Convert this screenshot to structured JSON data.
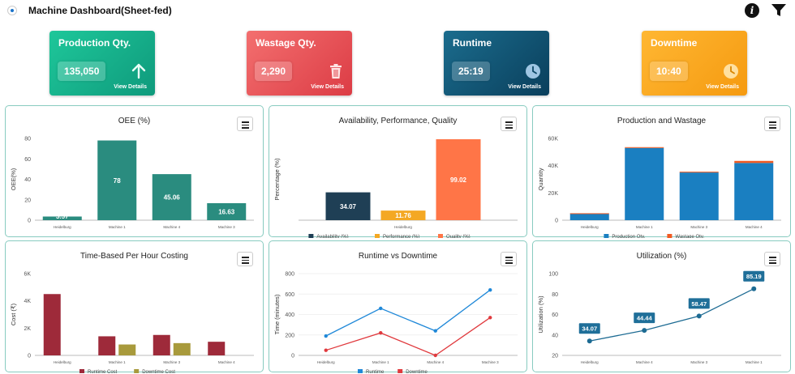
{
  "header": {
    "title": "Machine Dashboard(Sheet-fed)"
  },
  "kpis": [
    {
      "label": "Production Qty.",
      "value": "135,050",
      "link": "View Details",
      "icon": "arrow-up-icon"
    },
    {
      "label": "Wastage Qty.",
      "value": "2,290",
      "link": "View Details",
      "icon": "trash-icon"
    },
    {
      "label": "Runtime",
      "value": "25:19",
      "link": "View Details",
      "icon": "clock-icon"
    },
    {
      "label": "Downtime",
      "value": "10:40",
      "link": "View Details",
      "icon": "clock-icon"
    }
  ],
  "charts": {
    "oee": {
      "title": "OEE (%)"
    },
    "apq": {
      "title": "Availability, Performance, Quality"
    },
    "prodwaste": {
      "title": "Production and Wastage"
    },
    "costing": {
      "title": "Time-Based Per Hour Costing"
    },
    "runtime": {
      "title": "Runtime vs Downtime"
    },
    "util": {
      "title": "Utilization (%)"
    }
  },
  "chart_data": [
    {
      "id": "oee",
      "type": "bar",
      "title": "OEE (%)",
      "categories": [
        "Heidelburg",
        "Machine 1",
        "Machine 4",
        "Machine 3"
      ],
      "values": [
        3.57,
        78,
        45.06,
        16.63
      ],
      "labels": [
        "3.57",
        "78",
        "45.06",
        "16.63"
      ],
      "ylabel": "OEE(%)",
      "ylim": [
        0,
        80
      ],
      "yticks": [
        "0",
        "20",
        "40",
        "60",
        "80"
      ],
      "color": "#2a8c7f"
    },
    {
      "id": "apq",
      "type": "bar",
      "title": "Availability, Performance, Quality",
      "categories": [
        "Heidelburg"
      ],
      "series": [
        {
          "name": "Availability (%)",
          "values": [
            34.07
          ],
          "label": "34.07",
          "color": "#1f3f55"
        },
        {
          "name": "Performance (%)",
          "values": [
            11.76
          ],
          "label": "11.76",
          "color": "#f4a823"
        },
        {
          "name": "Quality (%)",
          "values": [
            99.02
          ],
          "label": "99.02",
          "color": "#ff7547"
        }
      ],
      "ylabel": "Percentage (%)",
      "ylim": [
        0,
        100
      ]
    },
    {
      "id": "prodwaste",
      "type": "bar",
      "title": "Production and Wastage",
      "categories": [
        "Heidelburg",
        "Machine 1",
        "Machine 3",
        "Machine 4"
      ],
      "series": [
        {
          "name": "Production Qty.",
          "values": [
            5000,
            53000,
            35000,
            42000
          ],
          "color": "#1a7fc1"
        },
        {
          "name": "Wastage Qty.",
          "values": [
            100,
            600,
            600,
            1500
          ],
          "color": "#f15a22"
        }
      ],
      "ylabel": "Quantity",
      "ylim": [
        0,
        60000
      ],
      "yticks": [
        "0",
        "20K",
        "40K",
        "60K"
      ]
    },
    {
      "id": "costing",
      "type": "bar",
      "title": "Time-Based Per Hour Costing",
      "categories": [
        "Heidelburg",
        "Machine 1",
        "Machine 3",
        "Machine 4"
      ],
      "series": [
        {
          "name": "Runtime Cost",
          "values": [
            4500,
            1400,
            1500,
            1000
          ],
          "color": "#9e2a3a"
        },
        {
          "name": "Downtime Cost",
          "values": [
            0,
            800,
            900,
            0
          ],
          "color": "#a89a3c"
        }
      ],
      "ylabel": "Cost (₹)",
      "ylim": [
        0,
        6000
      ],
      "yticks": [
        "0",
        "2K",
        "4K",
        "6K"
      ]
    },
    {
      "id": "runtime",
      "type": "line",
      "title": "Runtime vs Downtime",
      "categories": [
        "Heidelburg",
        "Machine 1",
        "Machine 4",
        "Machine 3"
      ],
      "series": [
        {
          "name": "Runtime",
          "values": [
            190,
            460,
            240,
            640
          ],
          "color": "#1f88d8"
        },
        {
          "name": "Downtime",
          "values": [
            50,
            220,
            0,
            370
          ],
          "color": "#e0393d"
        }
      ],
      "ylabel": "Time (minutes)",
      "ylim": [
        0,
        800
      ],
      "yticks": [
        "0",
        "200",
        "400",
        "600",
        "800"
      ]
    },
    {
      "id": "util",
      "type": "line",
      "title": "Utilization (%)",
      "categories": [
        "Heidelburg",
        "Machine 4",
        "Machine 3",
        "Machine 1"
      ],
      "values": [
        34.07,
        44.44,
        58.47,
        85.19
      ],
      "labels": [
        "34.07",
        "44.44",
        "58.47",
        "85.19"
      ],
      "ylabel": "Utilization (%)",
      "ylim": [
        20,
        100
      ],
      "yticks": [
        "20",
        "40",
        "60",
        "80",
        "100"
      ],
      "color": "#1d6b93"
    }
  ]
}
